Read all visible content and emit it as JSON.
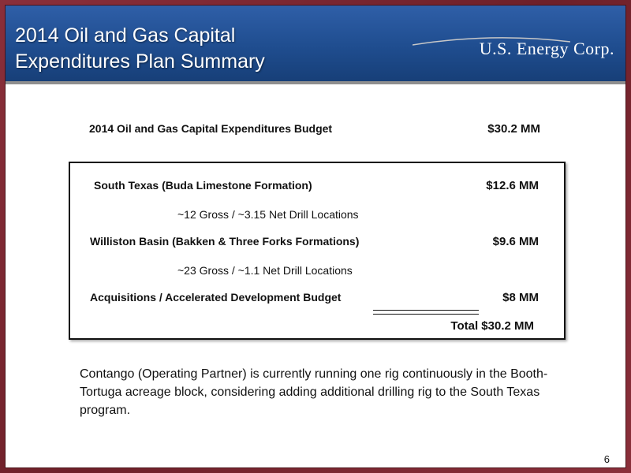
{
  "header": {
    "title_line1": "2014 Oil and Gas Capital",
    "title_line2": "Expenditures Plan Summary",
    "logo_text": "U.S. Energy Corp."
  },
  "budget": {
    "label": "2014 Oil and Gas Capital Expenditures Budget",
    "value": "$30.2 MM"
  },
  "items": [
    {
      "label": "South Texas (Buda Limestone Formation)",
      "value": "$12.6 MM",
      "sub": "~12 Gross / ~3.15 Net Drill Locations"
    },
    {
      "label": "Williston Basin (Bakken & Three Forks Formations)",
      "value": "$9.6 MM",
      "sub": "~23 Gross / ~1.1 Net Drill Locations"
    },
    {
      "label": "Acquisitions / Accelerated Development Budget",
      "value": "$8 MM"
    }
  ],
  "total": "Total $30.2 MM",
  "paragraph": "Contango (Operating Partner) is currently running one rig continuously in the Booth-Tortuga acreage block, considering adding additional drilling rig to the South Texas program.",
  "page_number": "6",
  "colors": {
    "header_blue": "#1f4d8f",
    "frame_maroon": "#7a2a33"
  }
}
